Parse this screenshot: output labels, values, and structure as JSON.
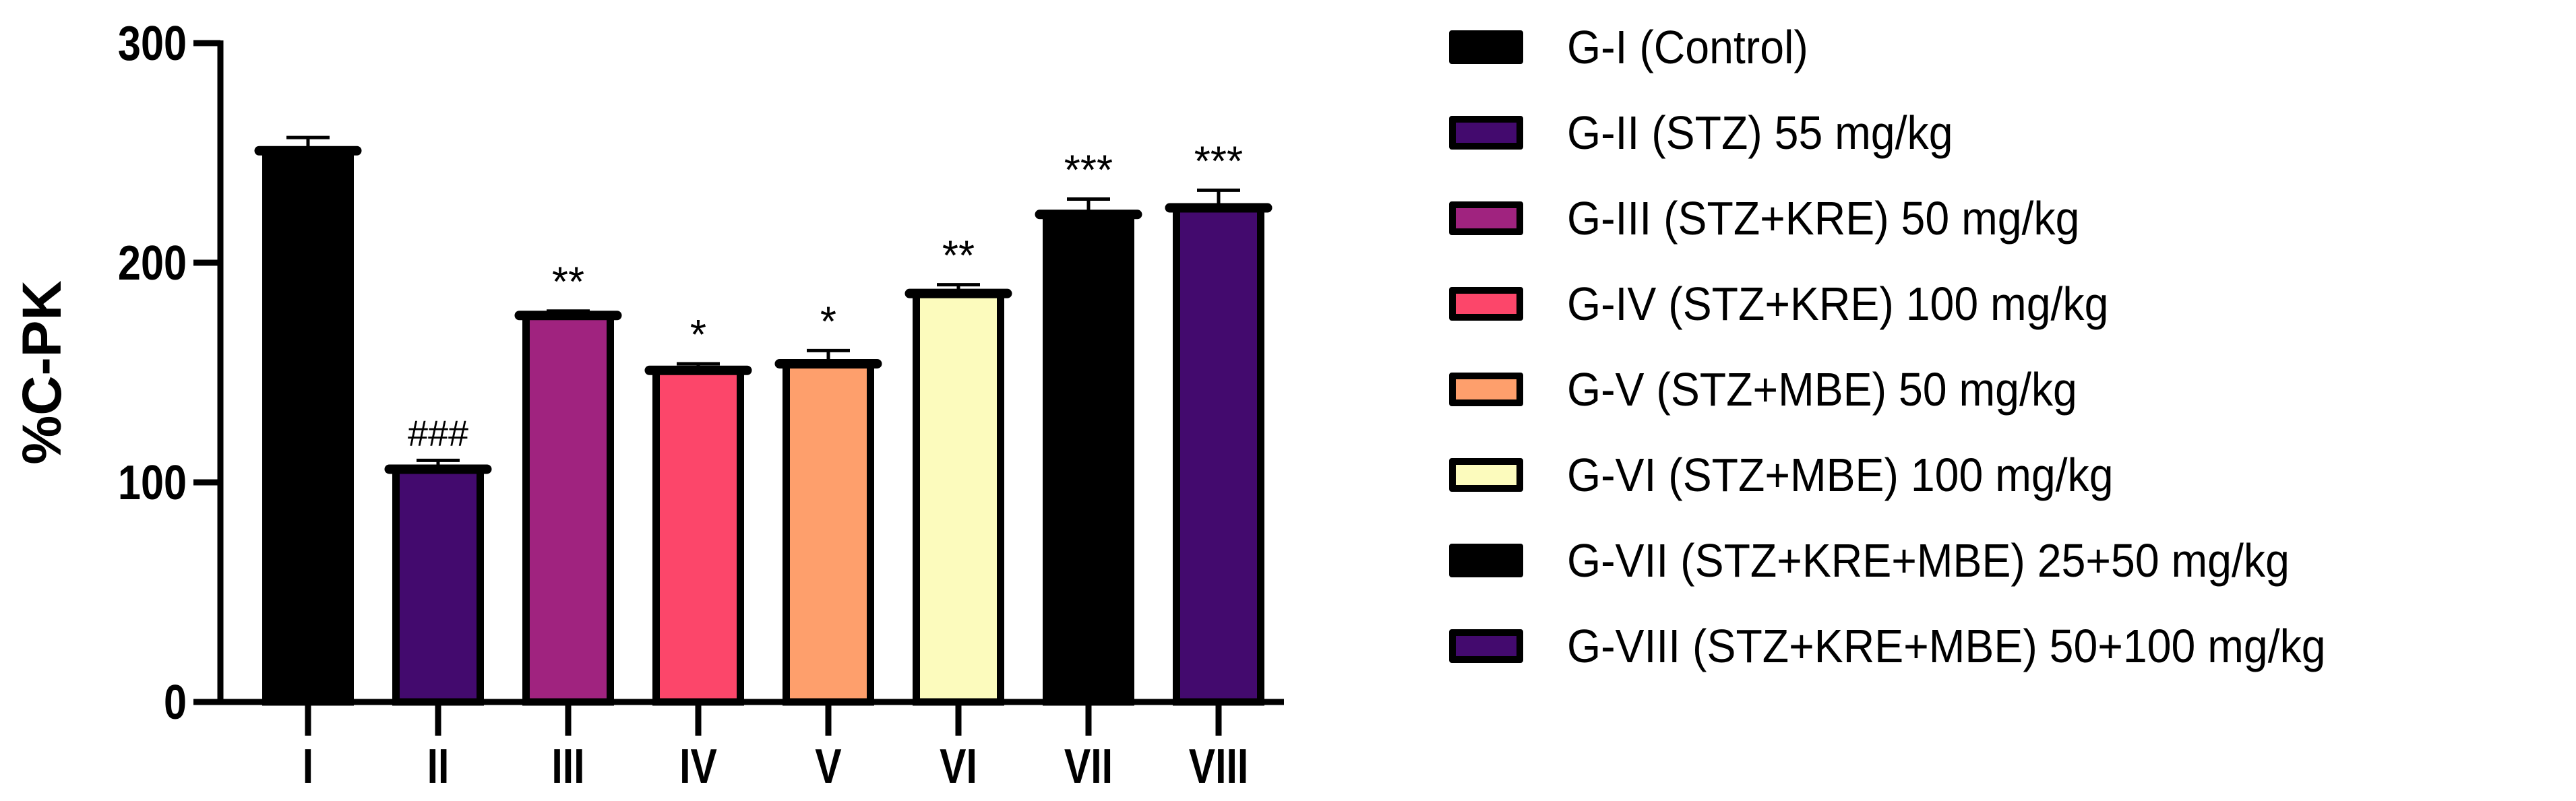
{
  "chart_data": {
    "type": "bar",
    "title": "",
    "xlabel": "",
    "ylabel": "%C-PK",
    "ylim": [
      0,
      300
    ],
    "yticks": [
      0,
      100,
      200,
      300
    ],
    "categories": [
      "I",
      "II",
      "III",
      "IV",
      "V",
      "VI",
      "VII",
      "VIII"
    ],
    "values": [
      251,
      106,
      176,
      151,
      154,
      186,
      222,
      225
    ],
    "errors": [
      6,
      4,
      2,
      3,
      6,
      4,
      7,
      8
    ],
    "annotations": [
      "",
      "###",
      "**",
      "*",
      "*",
      "**",
      "***",
      "***"
    ],
    "colors": [
      "#000000",
      "#430a6e",
      "#a0237f",
      "#fc466a",
      "#fe9f6c",
      "#fcfbbd",
      "#000000",
      "#430a6e"
    ],
    "legend": {
      "placement": "right",
      "entries": [
        "G-I (Control)",
        "G-II (STZ) 55 mg/kg",
        "G-III (STZ+KRE) 50 mg/kg",
        "G-IV (STZ+KRE) 100 mg/kg",
        "G-V (STZ+MBE) 50 mg/kg",
        "G-VI (STZ+MBE) 100 mg/kg",
        "G-VII (STZ+KRE+MBE) 25+50 mg/kg",
        "G-VIII (STZ+KRE+MBE) 50+100 mg/kg"
      ]
    },
    "grid": false
  }
}
